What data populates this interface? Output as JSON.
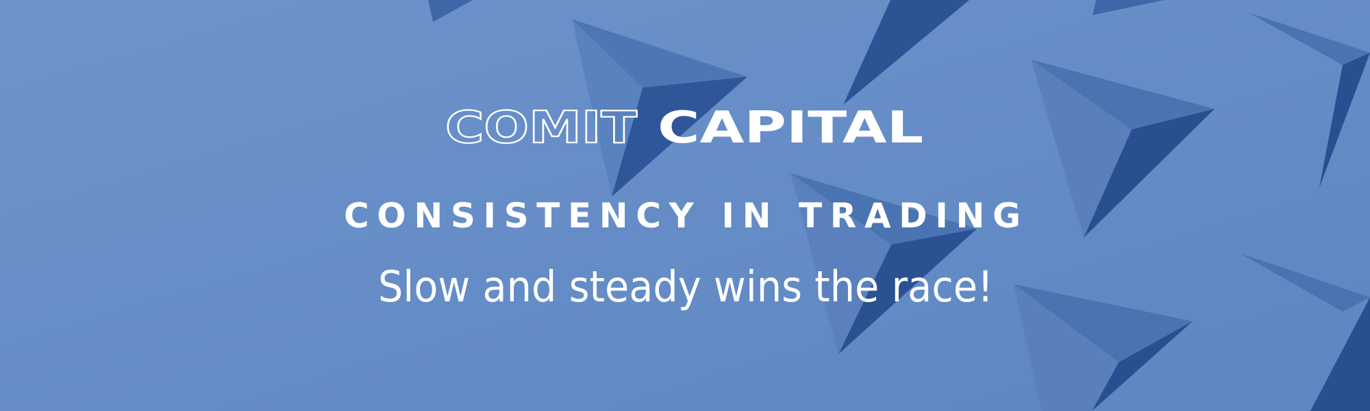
{
  "logo": {
    "outline": "COMIT",
    "solid": "CAPITAL"
  },
  "headline": "CONSISTENCY IN TRADING",
  "tagline": "Slow and steady wins the race!"
}
